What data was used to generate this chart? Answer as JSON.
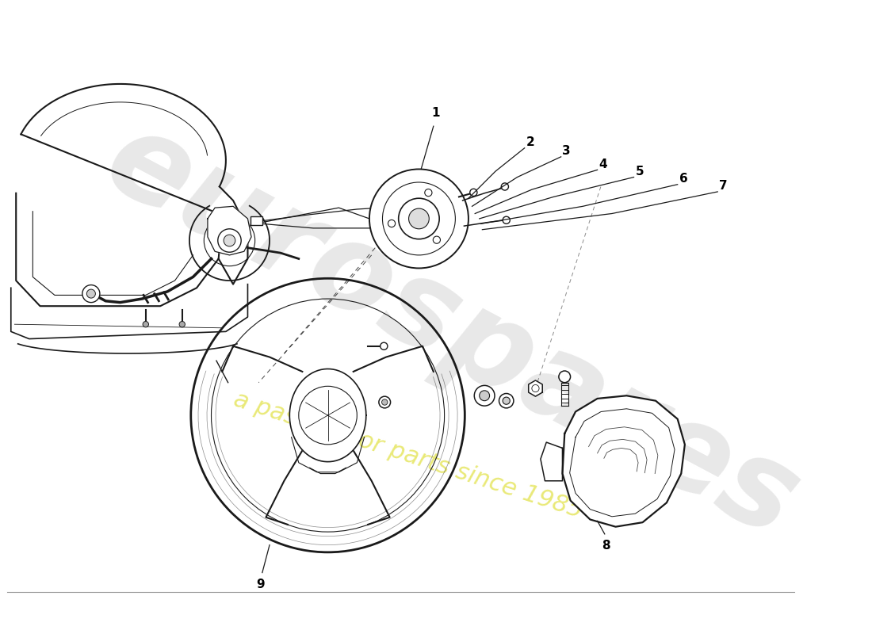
{
  "bg_color": "#ffffff",
  "line_color": "#1a1a1a",
  "lw": 1.0,
  "watermark_text1": "eurospares",
  "watermark_text2": "a passion for parts since 1985",
  "wm_color1": "#cccccc",
  "wm_color2": "#e8e870",
  "fig_w": 11.0,
  "fig_h": 8.0,
  "dpi": 100,
  "label_fontsize": 11,
  "label_color": "#000000"
}
